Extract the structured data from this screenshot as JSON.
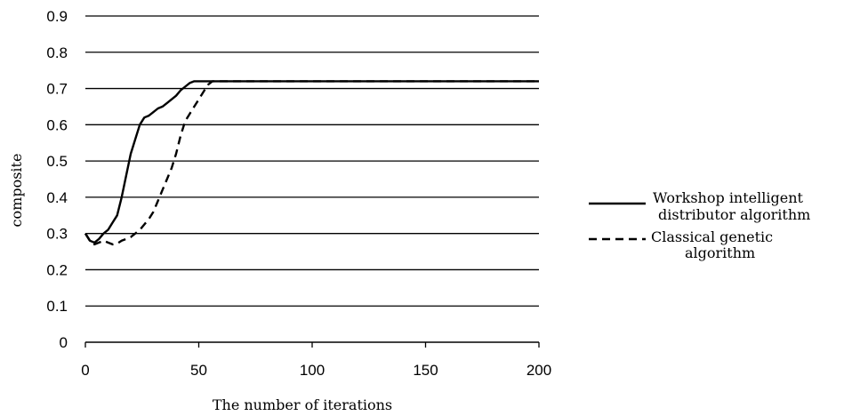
{
  "chart_data": {
    "type": "line",
    "xlabel": "The number of iterations",
    "ylabel": "composite",
    "xlim": [
      0,
      200
    ],
    "ylim": [
      0,
      0.9
    ],
    "x_ticks": [
      "0",
      "50",
      "100",
      "150",
      "200"
    ],
    "y_ticks": [
      "0",
      "0.1",
      "0.2",
      "0.3",
      "0.4",
      "0.5",
      "0.6",
      "0.7",
      "0.8",
      "0.9"
    ],
    "grid": "horizontal",
    "legend_position": "right",
    "series": [
      {
        "name_lines": [
          "Workshop intelligent",
          "distributor algorithm"
        ],
        "style": "solid",
        "color": "#000000",
        "points": [
          [
            0,
            0.3
          ],
          [
            2,
            0.28
          ],
          [
            4,
            0.275
          ],
          [
            6,
            0.285
          ],
          [
            8,
            0.3
          ],
          [
            10,
            0.31
          ],
          [
            12,
            0.33
          ],
          [
            14,
            0.35
          ],
          [
            16,
            0.4
          ],
          [
            18,
            0.46
          ],
          [
            20,
            0.52
          ],
          [
            22,
            0.56
          ],
          [
            24,
            0.6
          ],
          [
            26,
            0.62
          ],
          [
            28,
            0.625
          ],
          [
            30,
            0.635
          ],
          [
            32,
            0.645
          ],
          [
            34,
            0.65
          ],
          [
            36,
            0.66
          ],
          [
            38,
            0.67
          ],
          [
            40,
            0.68
          ],
          [
            42,
            0.695
          ],
          [
            44,
            0.705
          ],
          [
            46,
            0.715
          ],
          [
            48,
            0.72
          ],
          [
            50,
            0.72
          ],
          [
            60,
            0.72
          ],
          [
            100,
            0.72
          ],
          [
            150,
            0.72
          ],
          [
            200,
            0.72
          ]
        ]
      },
      {
        "name_lines": [
          "Classical genetic",
          "algorithm"
        ],
        "style": "dashed",
        "color": "#000000",
        "points": [
          [
            0,
            0.3
          ],
          [
            2,
            0.28
          ],
          [
            4,
            0.27
          ],
          [
            6,
            0.275
          ],
          [
            8,
            0.28
          ],
          [
            10,
            0.275
          ],
          [
            12,
            0.27
          ],
          [
            14,
            0.272
          ],
          [
            16,
            0.28
          ],
          [
            18,
            0.285
          ],
          [
            20,
            0.29
          ],
          [
            22,
            0.3
          ],
          [
            24,
            0.31
          ],
          [
            26,
            0.325
          ],
          [
            28,
            0.34
          ],
          [
            30,
            0.36
          ],
          [
            32,
            0.39
          ],
          [
            34,
            0.42
          ],
          [
            36,
            0.45
          ],
          [
            38,
            0.48
          ],
          [
            40,
            0.52
          ],
          [
            42,
            0.57
          ],
          [
            44,
            0.61
          ],
          [
            46,
            0.63
          ],
          [
            48,
            0.65
          ],
          [
            50,
            0.67
          ],
          [
            52,
            0.69
          ],
          [
            54,
            0.71
          ],
          [
            56,
            0.72
          ],
          [
            60,
            0.72
          ],
          [
            100,
            0.72
          ],
          [
            150,
            0.72
          ],
          [
            200,
            0.72
          ]
        ]
      }
    ]
  }
}
